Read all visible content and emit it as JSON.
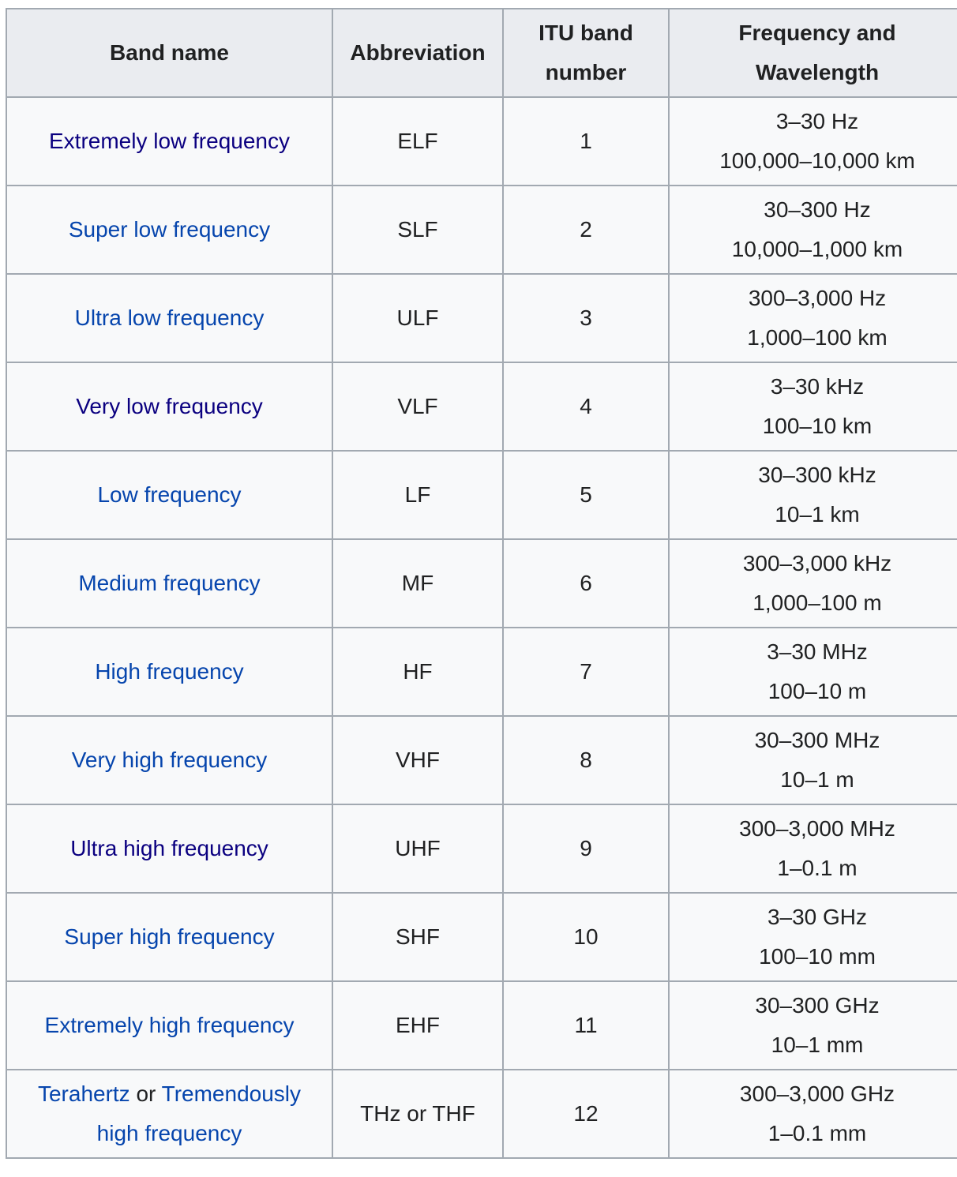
{
  "colors": {
    "link": "#0645ad",
    "visited_link": "#0b0080",
    "header_bg": "#eaecf0",
    "cell_bg": "#f8f9fa",
    "border": "#a2a9b1"
  },
  "table": {
    "headers": {
      "band_name": "Band name",
      "abbreviation": "Abbreviation",
      "itu_line1": "ITU band",
      "itu_line2": "number",
      "freq_line1": "Frequency and",
      "freq_line2": "Wavelength"
    },
    "rows": [
      {
        "name": "Extremely low frequency",
        "abbr": "ELF",
        "itu": "1",
        "freq": "3–30 Hz",
        "wave": "100,000–10,000 km"
      },
      {
        "name": "Super low frequency",
        "abbr": "SLF",
        "itu": "2",
        "freq": "30–300 Hz",
        "wave": "10,000–1,000 km"
      },
      {
        "name": "Ultra low frequency",
        "abbr": "ULF",
        "itu": "3",
        "freq": "300–3,000 Hz",
        "wave": "1,000–100 km"
      },
      {
        "name": "Very low frequency",
        "abbr": "VLF",
        "itu": "4",
        "freq": "3–30 kHz",
        "wave": "100–10 km"
      },
      {
        "name": "Low frequency",
        "abbr": "LF",
        "itu": "5",
        "freq": "30–300 kHz",
        "wave": "10–1 km"
      },
      {
        "name": "Medium frequency",
        "abbr": "MF",
        "itu": "6",
        "freq": "300–3,000 kHz",
        "wave": "1,000–100 m"
      },
      {
        "name": "High frequency",
        "abbr": "HF",
        "itu": "7",
        "freq": "3–30 MHz",
        "wave": "100–10 m"
      },
      {
        "name": "Very high frequency",
        "abbr": "VHF",
        "itu": "8",
        "freq": "30–300 MHz",
        "wave": "10–1 m"
      },
      {
        "name": "Ultra high frequency",
        "abbr": "UHF",
        "itu": "9",
        "freq": "300–3,000 MHz",
        "wave": "1–0.1 m"
      },
      {
        "name": "Super high frequency",
        "abbr": "SHF",
        "itu": "10",
        "freq": "3–30 GHz",
        "wave": "100–10 mm"
      },
      {
        "name": "Extremely high frequency",
        "abbr": "EHF",
        "itu": "11",
        "freq": "30–300 GHz",
        "wave": "10–1 mm"
      }
    ],
    "last_row": {
      "name_link1": "Terahertz",
      "name_sep": " or ",
      "name_link2_line1": "Tremendously",
      "name_link2_line2": "high frequency",
      "abbr": "THz or THF",
      "itu": "12",
      "freq": "300–3,000 GHz",
      "wave": "1–0.1 mm"
    }
  }
}
